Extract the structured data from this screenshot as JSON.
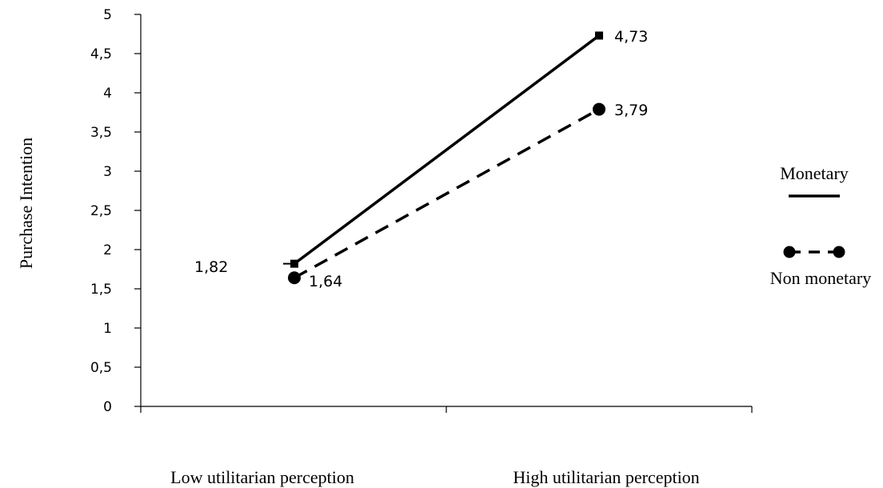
{
  "chart_data": {
    "type": "line",
    "title": "",
    "ylabel": "Purchase Intention",
    "xlabel": "",
    "categories": [
      "Low utilitarian perception",
      "High utilitarian perception"
    ],
    "ylim": [
      0,
      5
    ],
    "yticks": [
      "0",
      "0,5",
      "1",
      "1,5",
      "2",
      "2,5",
      "3",
      "3,5",
      "4",
      "4,5",
      "5"
    ],
    "grid": false,
    "legend_position": "right",
    "series": [
      {
        "name": "Monetary",
        "values": [
          1.82,
          4.73
        ],
        "labels": [
          "1,82",
          "4,73"
        ],
        "line_style": "solid",
        "marker": "square",
        "color": "#000000"
      },
      {
        "name": "Non monetary",
        "values": [
          1.64,
          3.79
        ],
        "labels": [
          "1,64",
          "3,79"
        ],
        "line_style": "dashed",
        "marker": "circle",
        "color": "#000000"
      }
    ]
  }
}
